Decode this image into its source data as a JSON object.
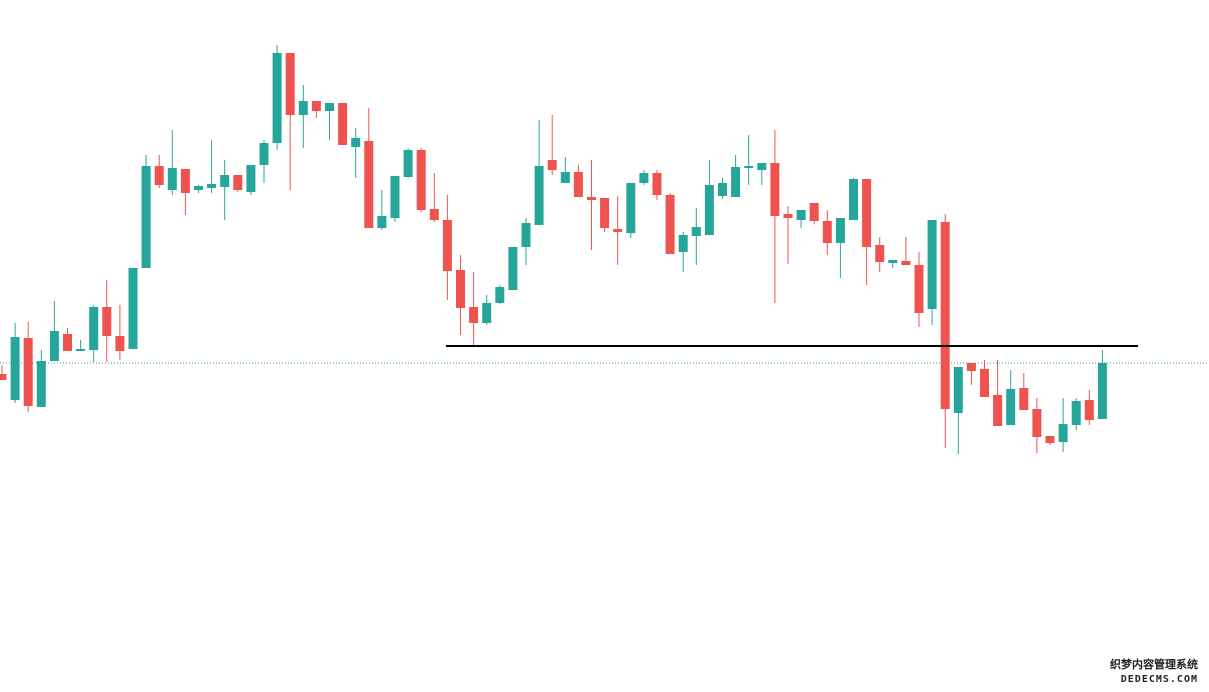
{
  "chart_data": {
    "type": "candlestick",
    "open": [
      318,
      292,
      354,
      285,
      331,
      358,
      341,
      342,
      385,
      356,
      343,
      424,
      526,
      502,
      523,
      502,
      504,
      505,
      517,
      500,
      527,
      549,
      639,
      577,
      591,
      581,
      589,
      545,
      551,
      464,
      474,
      515,
      542,
      483,
      472,
      422,
      385,
      369,
      389,
      402,
      445,
      467,
      532,
      509,
      520,
      495,
      494,
      463,
      459,
      509,
      519,
      497,
      440,
      456,
      457,
      496,
      495,
      524,
      522,
      529,
      478,
      472,
      489,
      471,
      449,
      472,
      513,
      447,
      429,
      431,
      427,
      383,
      470,
      279,
      329,
      323,
      297,
      267,
      304,
      283,
      256,
      250,
      267,
      292,
      273
    ],
    "high": [
      327,
      369,
      370,
      342,
      391,
      364,
      352,
      387,
      412,
      387,
      424,
      537,
      537,
      562,
      523,
      507,
      552,
      532,
      517,
      527,
      552,
      647,
      639,
      607,
      591,
      589,
      589,
      564,
      584,
      502,
      516,
      544,
      544,
      519,
      497,
      437,
      420,
      397,
      407,
      445,
      474,
      572,
      577,
      535,
      527,
      532,
      494,
      496,
      509,
      522,
      522,
      499,
      460,
      484,
      532,
      514,
      537,
      557,
      529,
      562,
      486,
      482,
      489,
      482,
      474,
      514,
      513,
      455,
      432,
      455,
      440,
      472,
      478,
      325,
      329,
      332,
      332,
      322,
      319,
      294,
      256,
      294,
      294,
      302,
      342
    ],
    "low": [
      312,
      289,
      280,
      285,
      331,
      341,
      341,
      330,
      330,
      332,
      343,
      424,
      504,
      497,
      477,
      499,
      499,
      472,
      500,
      497,
      509,
      542,
      502,
      544,
      574,
      552,
      547,
      514,
      464,
      462,
      470,
      514,
      480,
      470,
      392,
      357,
      345,
      367,
      388,
      402,
      427,
      467,
      517,
      509,
      495,
      442,
      460,
      427,
      454,
      507,
      492,
      438,
      420,
      427,
      457,
      493,
      495,
      507,
      507,
      389,
      428,
      464,
      468,
      437,
      414,
      472,
      407,
      420,
      424,
      427,
      365,
      367,
      244,
      238,
      307,
      295,
      266,
      267,
      282,
      239,
      247,
      240,
      262,
      267,
      273
    ],
    "close": [
      312,
      355,
      286,
      331,
      361,
      341,
      343,
      385,
      356,
      341,
      424,
      526,
      507,
      524,
      499,
      506,
      508,
      517,
      502,
      527,
      549,
      639,
      577,
      591,
      581,
      589,
      547,
      554,
      464,
      476,
      516,
      542,
      482,
      472,
      421,
      384,
      369,
      389,
      405,
      445,
      469,
      526,
      522,
      520,
      495,
      492,
      464,
      460,
      509,
      519,
      497,
      438,
      457,
      465,
      507,
      509,
      525,
      526,
      529,
      476,
      474,
      482,
      471,
      449,
      474,
      513,
      445,
      430,
      432,
      427,
      379,
      472,
      283,
      325,
      321,
      295,
      266,
      303,
      282,
      255,
      249,
      268,
      291,
      272,
      329
    ],
    "ylim": [
      0,
      692
    ],
    "up_color": "#26a69a",
    "down_color": "#ef5350",
    "support_level": 346,
    "support_color": "#000000",
    "last_price": 329,
    "last_price_color": "#26a69a"
  },
  "watermark": {
    "title": "织梦内容管理系统",
    "subtitle": "DEDECMS.COM"
  }
}
